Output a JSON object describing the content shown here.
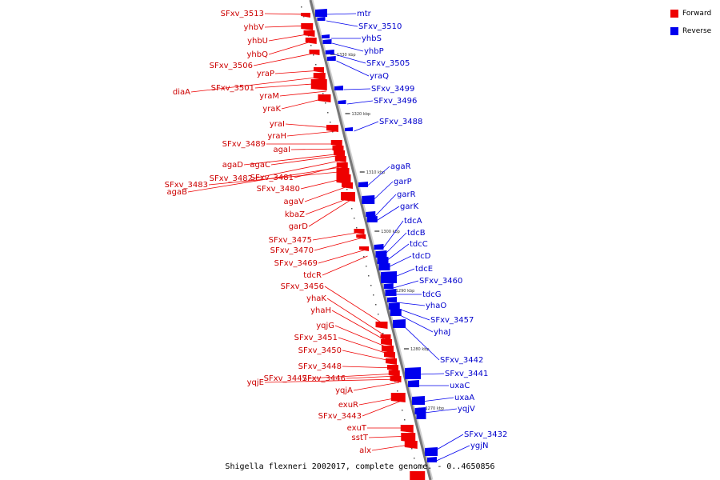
{
  "legend": {
    "forward_label": "Forward",
    "reverse_label": "Reverse",
    "forward_color": "#ee0000",
    "reverse_color": "#0000ee"
  },
  "caption": "Shigella flexneri 2002017, complete genome. - 0..4650856",
  "kbp_marks": [
    "1330 kbp",
    "1320 kbp",
    "1310 kbp",
    "1300 kbp",
    "1290 kbp",
    "1280 kbp",
    "1270 kbp"
  ],
  "forward_genes": [
    "SFxv_3513",
    "yhbV",
    "yhbU",
    "yhbQ",
    "SFxv_3506",
    "yraP",
    "diaA",
    "SFxv_3501",
    "yraM",
    "yraK",
    "yraI",
    "yraH",
    "SFxv_3489",
    "agaI",
    "agaD",
    "agaC",
    "SFxv_3482",
    "SFxv_3481",
    "SFxv_3483",
    "agaB",
    "SFxv_3480",
    "agaV",
    "kbaZ",
    "garD",
    "SFxv_3475",
    "SFxv_3470",
    "SFxv_3469",
    "tdcR",
    "SFxv_3456",
    "yhaK",
    "yhaH",
    "yqjG",
    "SFxv_3451",
    "SFxv_3450",
    "SFxv_3448",
    "SFxv_3447",
    "SFxv_3446",
    "yqjE",
    "yqjA",
    "exuR",
    "SFxv_3443",
    "exuT",
    "sstT",
    "alx"
  ],
  "reverse_genes": [
    "mtr",
    "SFxv_3510",
    "yhbS",
    "yhbP",
    "SFxv_3505",
    "yraQ",
    "SFxv_3499",
    "SFxv_3496",
    "SFxv_3488",
    "agaR",
    "garP",
    "garR",
    "garK",
    "tdcA",
    "tdcB",
    "tdcC",
    "tdcD",
    "tdcE",
    "SFxv_3460",
    "tdcG",
    "yhaO",
    "SFxv_3457",
    "yhaJ",
    "SFxv_3442",
    "SFxv_3441",
    "uxaC",
    "uxaA",
    "yqjV",
    "SFxv_3432",
    "ygjN"
  ]
}
